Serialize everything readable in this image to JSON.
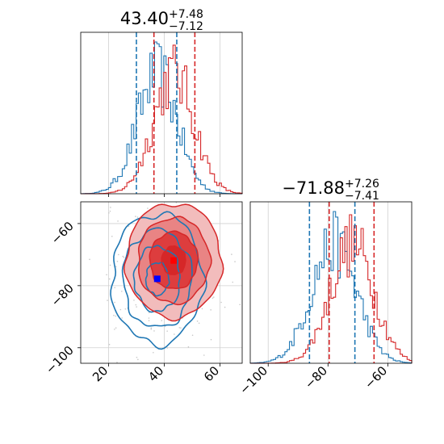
{
  "chart_data": [
    {
      "type": "histogram",
      "panel": "top-left",
      "title": {
        "value": "43.40",
        "upper": "+7.48",
        "lower": "−7.12"
      },
      "xlim": [
        10,
        68
      ],
      "quantiles": [
        {
          "series": "blue",
          "values": [
            30,
            44.5
          ]
        },
        {
          "series": "red",
          "values": [
            36.3,
            51
          ]
        }
      ],
      "series": [
        {
          "key": "blue",
          "color": "#1f77b4",
          "center": 37.5,
          "sigma": 7.2
        },
        {
          "key": "red",
          "color": "#d62728",
          "center": 43.4,
          "sigma": 7.3
        }
      ]
    },
    {
      "type": "contour",
      "panel": "bottom-left",
      "xlim": [
        10,
        68
      ],
      "ylim": [
        -105,
        -53
      ],
      "x_ticks": [
        "20",
        "40",
        "60"
      ],
      "y_ticks": [
        "−60",
        "−80",
        "−100"
      ],
      "x_tick_values": [
        20,
        40,
        60
      ],
      "y_tick_values": [
        -60,
        -80,
        -100
      ],
      "markers": [
        {
          "series": "red",
          "x": 43.4,
          "y": -71.9,
          "color": "#ff0000"
        },
        {
          "series": "blue",
          "x": 37.5,
          "y": -77.8,
          "color": "#0000ff"
        }
      ],
      "series": [
        {
          "key": "red",
          "color": "#d62728",
          "center": [
            43.4,
            -71.9
          ],
          "spread": [
            8.6,
            9.2
          ]
        },
        {
          "key": "blue",
          "color": "#1f77b4",
          "center": [
            37.5,
            -77.8
          ],
          "spread": [
            8.2,
            10.5
          ]
        }
      ]
    },
    {
      "type": "histogram",
      "panel": "bottom-right",
      "title": {
        "value": "−71.88",
        "upper": "+7.26",
        "lower": "−7.41"
      },
      "xlim": [
        -106,
        -52
      ],
      "x_ticks": [
        "−100",
        "−80",
        "−60"
      ],
      "x_tick_values": [
        -100,
        -80,
        -60
      ],
      "quantiles": [
        {
          "series": "blue",
          "values": [
            -86.2,
            -71
          ]
        },
        {
          "series": "red",
          "values": [
            -79.6,
            -64.6
          ]
        }
      ],
      "series": [
        {
          "key": "blue",
          "color": "#1f77b4",
          "center": -78.0,
          "sigma": 7.6
        },
        {
          "key": "red",
          "color": "#d62728",
          "center": -71.9,
          "sigma": 7.3
        }
      ]
    }
  ]
}
